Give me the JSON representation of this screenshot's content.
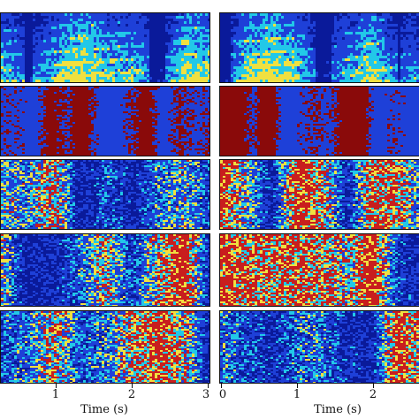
{
  "figure": {
    "columns": [
      {
        "id": "left",
        "x_ticks": [
          "1",
          "2",
          "3"
        ],
        "x_label": "Time (s)",
        "panels": [
          {
            "kind": "spectrogram"
          },
          {
            "kind": "phase-binary"
          },
          {
            "kind": "mask-mixed"
          },
          {
            "kind": "mask-mixed"
          },
          {
            "kind": "mask-mixed"
          }
        ]
      },
      {
        "id": "right",
        "x_ticks": [
          "0",
          "1",
          "2"
        ],
        "x_label": "Time (s)",
        "panels": [
          {
            "kind": "spectrogram"
          },
          {
            "kind": "phase-binary"
          },
          {
            "kind": "mask-mixed"
          },
          {
            "kind": "mask-mixed"
          },
          {
            "kind": "mask-mixed"
          }
        ]
      }
    ],
    "colors": {
      "deep_blue": "#0a1a9a",
      "blue": "#1e40d8",
      "cyan": "#22c8e8",
      "yellow": "#f0e040",
      "red": "#c81e1e",
      "dark_red": "#8a0a0a"
    }
  }
}
